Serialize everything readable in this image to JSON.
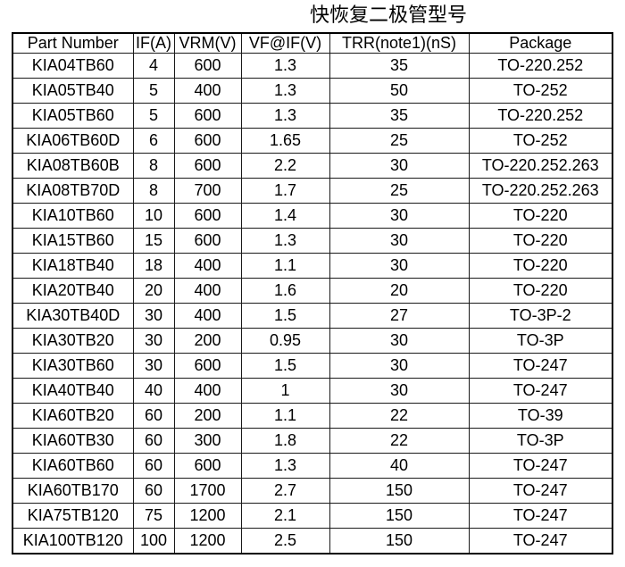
{
  "title": "快恢复二极管型号",
  "table": {
    "columns": [
      "Part Number",
      "IF(A)",
      "VRM(V)",
      "VF@IF(V)",
      "TRR(note1)(nS)",
      "Package"
    ],
    "column_keys": [
      "part-number",
      "if-a",
      "vrm-v",
      "vf-at-if-v",
      "trr-ns",
      "package"
    ],
    "rows": [
      [
        "KIA04TB60",
        "4",
        "600",
        "1.3",
        "35",
        "TO-220.252"
      ],
      [
        "KIA05TB40",
        "5",
        "400",
        "1.3",
        "50",
        "TO-252"
      ],
      [
        "KIA05TB60",
        "5",
        "600",
        "1.3",
        "35",
        "TO-220.252"
      ],
      [
        "KIA06TB60D",
        "6",
        "600",
        "1.65",
        "25",
        "TO-252"
      ],
      [
        "KIA08TB60B",
        "8",
        "600",
        "2.2",
        "30",
        "TO-220.252.263"
      ],
      [
        "KIA08TB70D",
        "8",
        "700",
        "1.7",
        "25",
        "TO-220.252.263"
      ],
      [
        "KIA10TB60",
        "10",
        "600",
        "1.4",
        "30",
        "TO-220"
      ],
      [
        "KIA15TB60",
        "15",
        "600",
        "1.3",
        "30",
        "TO-220"
      ],
      [
        "KIA18TB40",
        "18",
        "400",
        "1.1",
        "30",
        "TO-220"
      ],
      [
        "KIA20TB40",
        "20",
        "400",
        "1.6",
        "20",
        "TO-220"
      ],
      [
        "KIA30TB40D",
        "30",
        "400",
        "1.5",
        "27",
        "TO-3P-2"
      ],
      [
        "KIA30TB20",
        "30",
        "200",
        "0.95",
        "30",
        "TO-3P"
      ],
      [
        "KIA30TB60",
        "30",
        "600",
        "1.5",
        "30",
        "TO-247"
      ],
      [
        "KIA40TB40",
        "40",
        "400",
        "1",
        "30",
        "TO-247"
      ],
      [
        "KIA60TB20",
        "60",
        "200",
        "1.1",
        "22",
        "TO-39"
      ],
      [
        "KIA60TB30",
        "60",
        "300",
        "1.8",
        "22",
        "TO-3P"
      ],
      [
        "KIA60TB60",
        "60",
        "600",
        "1.3",
        "40",
        "TO-247"
      ],
      [
        "KIA60TB170",
        "60",
        "1700",
        "2.7",
        "150",
        "TO-247"
      ],
      [
        "KIA75TB120",
        "75",
        "1200",
        "2.1",
        "150",
        "TO-247"
      ],
      [
        "KIA100TB120",
        "100",
        "1200",
        "2.5",
        "150",
        "TO-247"
      ]
    ]
  },
  "colors": {
    "background": "#ffffff",
    "text": "#000000",
    "border": "#1a1a1a"
  }
}
